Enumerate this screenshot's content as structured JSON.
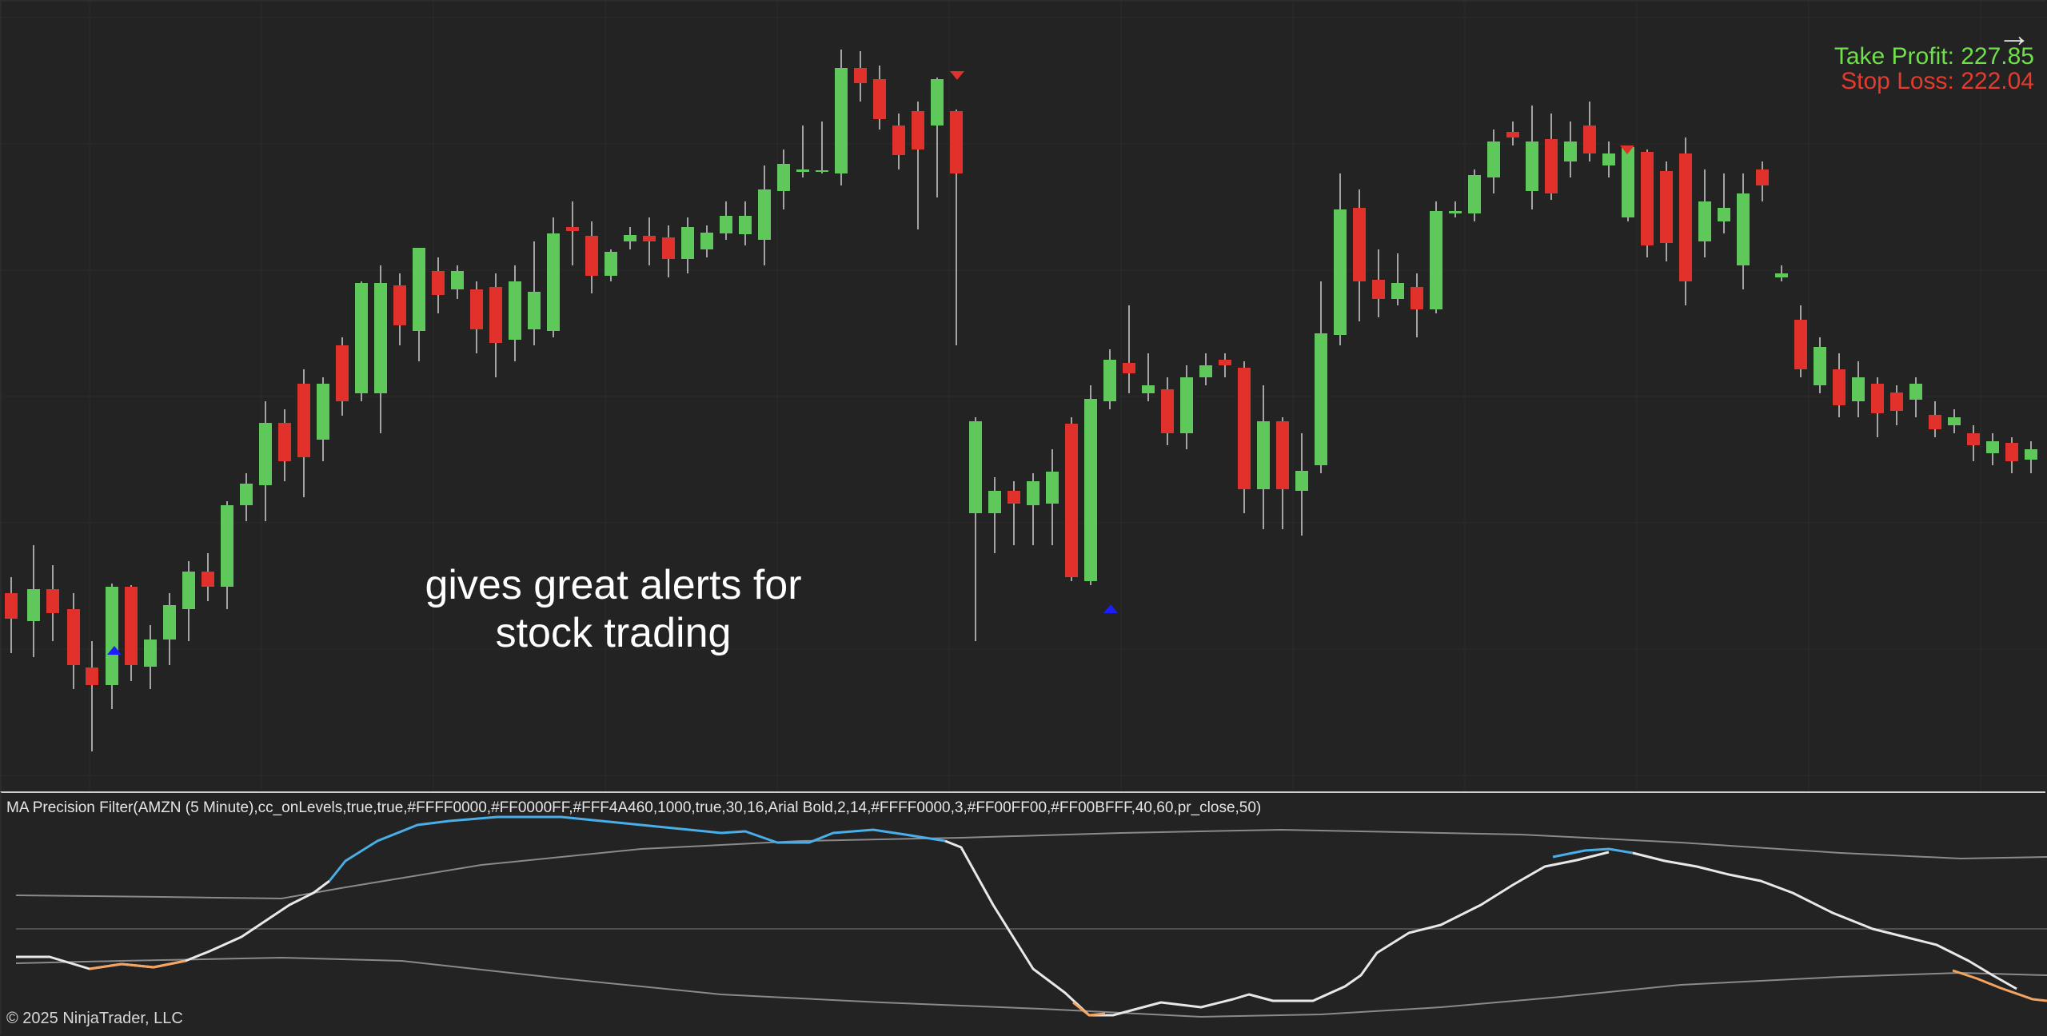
{
  "price_panel": {
    "take_profit": "Take Profit: 227.85",
    "stop_loss": "Stop Loss: 222.04",
    "annotation_line1": "gives great alerts for",
    "annotation_line2": "stock trading",
    "arrow_icon": "right-arrow-icon",
    "colors": {
      "bull": "#5fc85a",
      "bear": "#e0312b",
      "take_profit": "#6fe04a",
      "stop_loss": "#e53b2e",
      "buy_marker": "#1c1cff",
      "sell_marker": "#e0312b"
    }
  },
  "indicator_panel": {
    "label": "MA Precision Filter(AMZN (5 Minute),cc_onLevels,true,true,#FFFF0000,#FF0000FF,#FFF4A460,1000,true,30,16,Arial Bold,2,14,#FFFF0000,3,#FF00FF00,#FF00BFFF,40,60,pr_close,50)",
    "colors": {
      "line": "#e8e8e8",
      "above": "#4aaee8",
      "below": "#f4a460",
      "bands": "#8a8a8a"
    }
  },
  "footer": {
    "copyright": "© 2025 NinjaTrader, LLC"
  }
}
